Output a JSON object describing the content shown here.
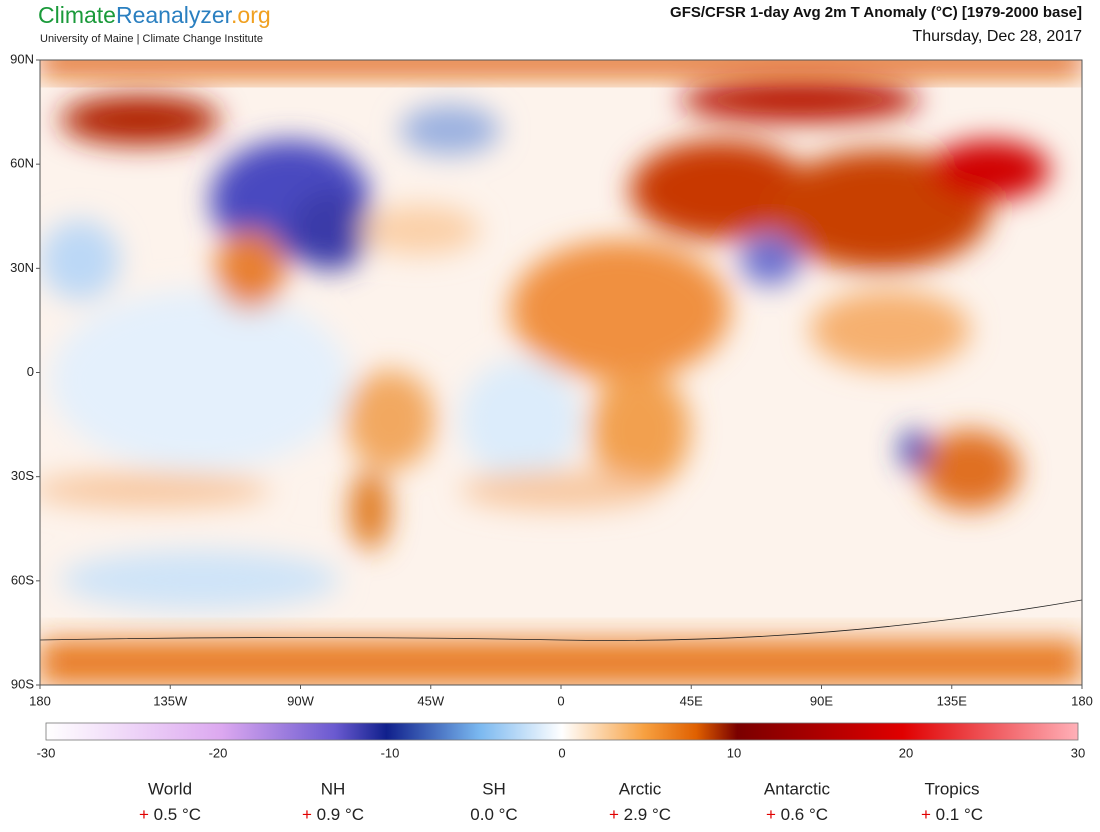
{
  "header": {
    "logo_parts": [
      "Climate",
      "Reanalyzer",
      ".org"
    ],
    "subtitle": "University of Maine | Climate Change Institute",
    "title": "GFS/CFSR 1-day Avg 2m T Anomaly (°C) [1979-2000 base]",
    "date": "Thursday, Dec 28, 2017"
  },
  "map": {
    "lat_labels": [
      "90N",
      "60N",
      "30N",
      "0",
      "30S",
      "60S",
      "90S"
    ],
    "lon_labels": [
      "180",
      "135W",
      "90W",
      "45W",
      "0",
      "45E",
      "90E",
      "135E",
      "180"
    ]
  },
  "colorbar": {
    "labels": [
      "-30",
      "-20",
      "-10",
      "0",
      "10",
      "20",
      "30"
    ]
  },
  "stats": [
    {
      "region": "World",
      "sign": "+",
      "value": "0.5 °C"
    },
    {
      "region": "NH",
      "sign": "+",
      "value": "0.9 °C"
    },
    {
      "region": "SH",
      "value": "0.0 °C"
    },
    {
      "region": "Arctic",
      "sign": "+",
      "value": "2.9 °C"
    },
    {
      "region": "Antarctic",
      "sign": "+",
      "value": "0.6 °C"
    },
    {
      "region": "Tropics",
      "sign": "+",
      "value": "0.1 °C"
    }
  ]
}
